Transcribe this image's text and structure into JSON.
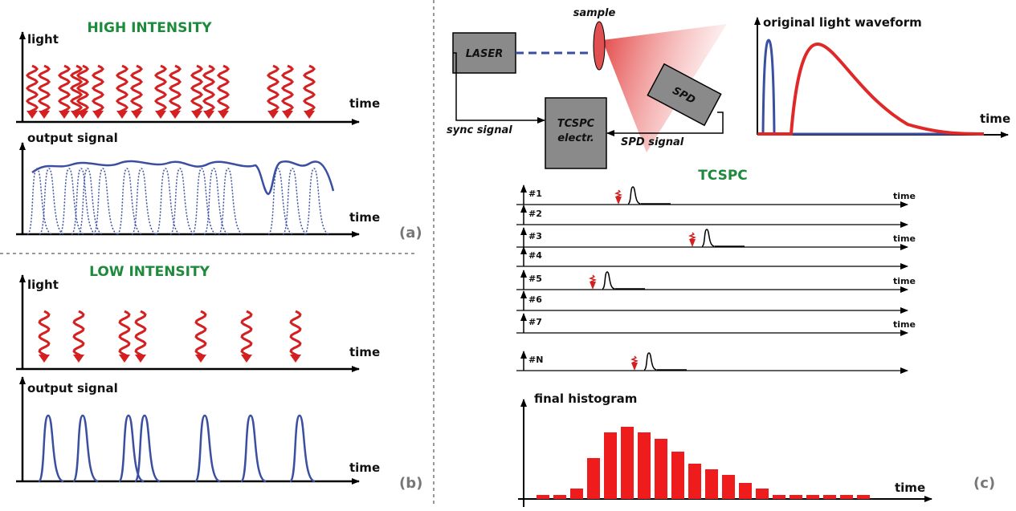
{
  "panel_a": {
    "title": "HIGH INTENSITY",
    "light_axis": "light",
    "light_time": "time",
    "signal_axis": "output signal",
    "signal_time": "time",
    "label": "(a)"
  },
  "panel_b": {
    "title": "LOW INTENSITY",
    "light_axis": "light",
    "light_time": "time",
    "signal_axis": "output signal",
    "signal_time": "time",
    "label": "(b)"
  },
  "panel_c": {
    "setup": {
      "sample": "sample",
      "laser": "LASER",
      "spd": "SPD",
      "tcspc_line1": "TCSPC",
      "tcspc_line2": "electr.",
      "sync": "sync signal",
      "spd_signal": "SPD signal"
    },
    "waveform": {
      "title": "original light waveform",
      "time": "time"
    },
    "tcspc": {
      "title": "TCSPC",
      "rows": [
        {
          "label": "#1",
          "time": "time"
        },
        {
          "label": "#2"
        },
        {
          "label": "#3",
          "time": "time"
        },
        {
          "label": "#4"
        },
        {
          "label": "#5",
          "time": "time"
        },
        {
          "label": "#6"
        },
        {
          "label": "#7",
          "time": "time"
        },
        {
          "label": "#N"
        }
      ]
    },
    "histogram": {
      "title": "final histogram",
      "time": "time"
    },
    "label": "(c)"
  }
}
